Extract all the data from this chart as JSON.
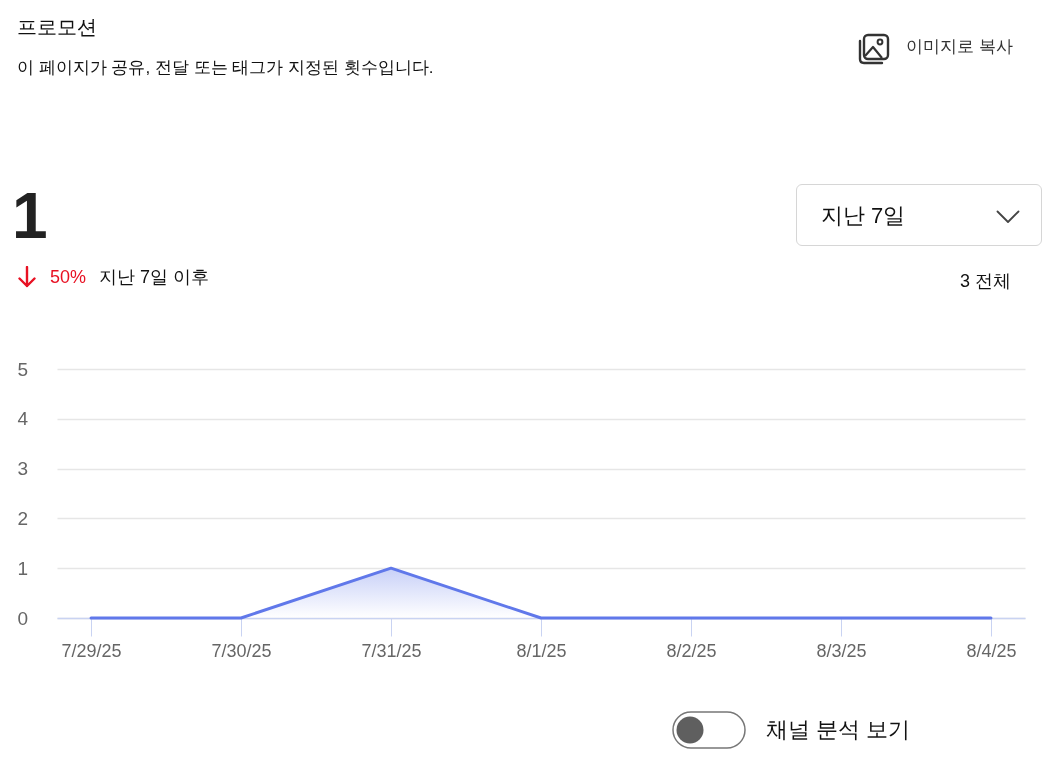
{
  "chart_data": {
    "type": "area",
    "title": "프로모션",
    "subtitle": "이 페이지가 공유, 전달 또는 태그가 지정된 횟수입니다.",
    "categories": [
      "7/29/25",
      "7/30/25",
      "7/31/25",
      "8/1/25",
      "8/2/25",
      "8/3/25",
      "8/4/25"
    ],
    "series": [
      {
        "color": "#6078ea",
        "values": [
          0,
          0,
          1,
          0,
          0,
          0,
          0
        ]
      }
    ],
    "ylim": [
      0,
      5
    ],
    "yticks": [
      0,
      1,
      2,
      3,
      4,
      5
    ],
    "grid": "y",
    "annotations": [
      "이미지로 복사",
      "1",
      "50%",
      "지난 7일 이후",
      "지난 7일",
      "3 전체",
      "채널 분석 보기"
    ]
  }
}
